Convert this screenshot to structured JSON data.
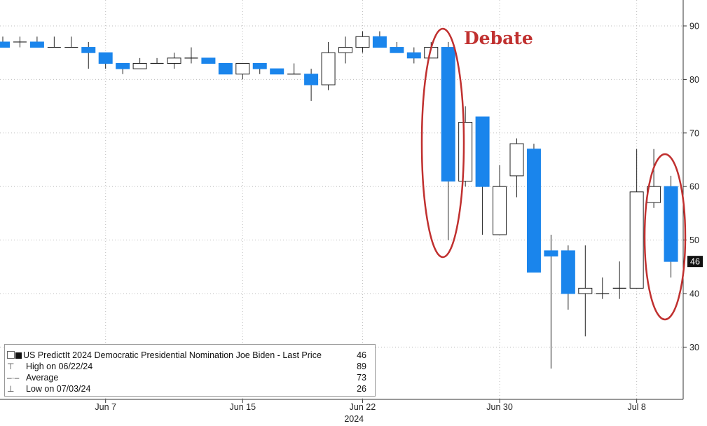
{
  "chart_data": {
    "type": "candlestick",
    "title": "",
    "xlabel": "2024",
    "ylabel": "",
    "ylim": [
      20,
      95
    ],
    "y_ticks": [
      30,
      40,
      50,
      60,
      70,
      80,
      90
    ],
    "y_axis_position": "right",
    "x_ticks": [
      "Jun 7",
      "Jun 15",
      "Jun 22",
      "Jun 30",
      "Jul 8"
    ],
    "x_tick_days": [
      7,
      15,
      22,
      30,
      38
    ],
    "x_year_label": "2024",
    "last_price_label": "46",
    "grid": "horizontal dotted",
    "colors": {
      "down": "#1a85ec",
      "up": "#ffffff",
      "outline": "#222222",
      "annotation": "#c0302f"
    },
    "annotation": {
      "text": "Debate"
    },
    "candles": [
      {
        "day": 1,
        "open": 87,
        "high": 88,
        "low": 86,
        "close": 86
      },
      {
        "day": 2,
        "open": 87,
        "high": 88,
        "low": 86,
        "close": 87
      },
      {
        "day": 3,
        "open": 87,
        "high": 88,
        "low": 86,
        "close": 86
      },
      {
        "day": 4,
        "open": 86,
        "high": 88,
        "low": 86,
        "close": 86
      },
      {
        "day": 5,
        "open": 86,
        "high": 88,
        "low": 86,
        "close": 86
      },
      {
        "day": 6,
        "open": 86,
        "high": 87,
        "low": 82,
        "close": 85
      },
      {
        "day": 7,
        "open": 85,
        "high": 85,
        "low": 82,
        "close": 83
      },
      {
        "day": 8,
        "open": 83,
        "high": 83,
        "low": 81,
        "close": 82
      },
      {
        "day": 9,
        "open": 82,
        "high": 84,
        "low": 82,
        "close": 83
      },
      {
        "day": 10,
        "open": 83,
        "high": 84,
        "low": 83,
        "close": 83
      },
      {
        "day": 11,
        "open": 83,
        "high": 85,
        "low": 82,
        "close": 84
      },
      {
        "day": 12,
        "open": 84,
        "high": 86,
        "low": 83,
        "close": 84
      },
      {
        "day": 13,
        "open": 84,
        "high": 84,
        "low": 83,
        "close": 83
      },
      {
        "day": 14,
        "open": 83,
        "high": 83,
        "low": 81,
        "close": 81
      },
      {
        "day": 15,
        "open": 81,
        "high": 83,
        "low": 80,
        "close": 83
      },
      {
        "day": 16,
        "open": 83,
        "high": 83,
        "low": 81,
        "close": 82
      },
      {
        "day": 17,
        "open": 82,
        "high": 82,
        "low": 81,
        "close": 81
      },
      {
        "day": 18,
        "open": 81,
        "high": 83,
        "low": 81,
        "close": 81
      },
      {
        "day": 19,
        "open": 81,
        "high": 82,
        "low": 76,
        "close": 79
      },
      {
        "day": 20,
        "open": 79,
        "high": 87,
        "low": 78,
        "close": 85
      },
      {
        "day": 21,
        "open": 85,
        "high": 88,
        "low": 83,
        "close": 86
      },
      {
        "day": 22,
        "open": 86,
        "high": 89,
        "low": 85,
        "close": 88
      },
      {
        "day": 23,
        "open": 88,
        "high": 89,
        "low": 86,
        "close": 86
      },
      {
        "day": 24,
        "open": 86,
        "high": 87,
        "low": 85,
        "close": 85
      },
      {
        "day": 25,
        "open": 85,
        "high": 86,
        "low": 83,
        "close": 84
      },
      {
        "day": 26,
        "open": 84,
        "high": 87,
        "low": 84,
        "close": 86
      },
      {
        "day": 27,
        "open": 86,
        "high": 87,
        "low": 50,
        "close": 61
      },
      {
        "day": 28,
        "open": 61,
        "high": 75,
        "low": 60,
        "close": 72
      },
      {
        "day": 29,
        "open": 73,
        "high": 73,
        "low": 51,
        "close": 60
      },
      {
        "day": 30,
        "open": 51,
        "high": 64,
        "low": 51,
        "close": 60
      },
      {
        "day": 31,
        "open": 62,
        "high": 69,
        "low": 58,
        "close": 68
      },
      {
        "day": 32,
        "open": 67,
        "high": 68,
        "low": 44,
        "close": 44
      },
      {
        "day": 33,
        "open": 48,
        "high": 51,
        "low": 26,
        "close": 47
      },
      {
        "day": 34,
        "open": 48,
        "high": 49,
        "low": 37,
        "close": 40
      },
      {
        "day": 35,
        "open": 40,
        "high": 49,
        "low": 32,
        "close": 41
      },
      {
        "day": 36,
        "open": 40,
        "high": 43,
        "low": 39,
        "close": 40
      },
      {
        "day": 37,
        "open": 41,
        "high": 46,
        "low": 39,
        "close": 41
      },
      {
        "day": 38,
        "open": 41,
        "high": 67,
        "low": 41,
        "close": 59
      },
      {
        "day": 39,
        "open": 57,
        "high": 67,
        "low": 56,
        "close": 60
      },
      {
        "day": 40,
        "open": 60,
        "high": 62,
        "low": 43,
        "close": 46
      }
    ]
  },
  "legend": {
    "main_label": "US PredictIt 2024 Democratic Presidential Nomination Joe Biden - Last Price",
    "main_value": "46",
    "high_label": "High on 06/22/24",
    "high_value": "89",
    "avg_label": "Average",
    "avg_value": "73",
    "low_label": "Low on 07/03/24",
    "low_value": "26"
  }
}
